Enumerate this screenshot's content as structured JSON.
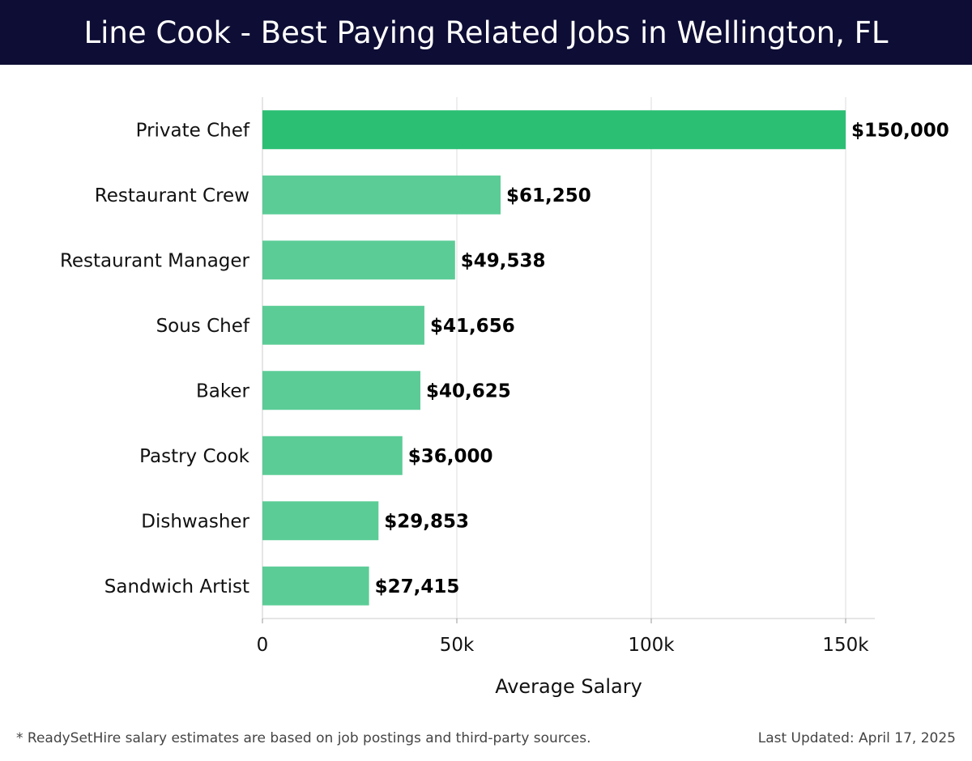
{
  "header": {
    "title": "Line Cook - Best Paying Related Jobs in Wellington, FL"
  },
  "chart_data": {
    "type": "bar",
    "orientation": "horizontal",
    "title": "Line Cook - Best Paying Related Jobs in Wellington, FL",
    "xlabel": "Average Salary",
    "ylabel": "",
    "xlim": [
      0,
      157500
    ],
    "xticks": [
      0,
      50000,
      100000,
      150000
    ],
    "xtick_labels": [
      "0",
      "50k",
      "100k",
      "150k"
    ],
    "grid": true,
    "categories": [
      "Private Chef",
      "Restaurant Crew",
      "Restaurant Manager",
      "Sous Chef",
      "Baker",
      "Pastry Cook",
      "Dishwasher",
      "Sandwich Artist"
    ],
    "values": [
      150000,
      61250,
      49538,
      41656,
      40625,
      36000,
      29853,
      27415
    ],
    "value_labels": [
      "$150,000",
      "$61,250",
      "$49,538",
      "$41,656",
      "$40,625",
      "$36,000",
      "$29,853",
      "$27,415"
    ],
    "colors": {
      "highlight_bar": "#2bbf74",
      "bar": "#52c990",
      "grid": "#dddddd",
      "axis": "#cccccc"
    }
  },
  "footer": {
    "note": "* ReadySetHire salary estimates are based on job postings and third-party sources.",
    "updated": "Last Updated: April 17, 2025"
  }
}
